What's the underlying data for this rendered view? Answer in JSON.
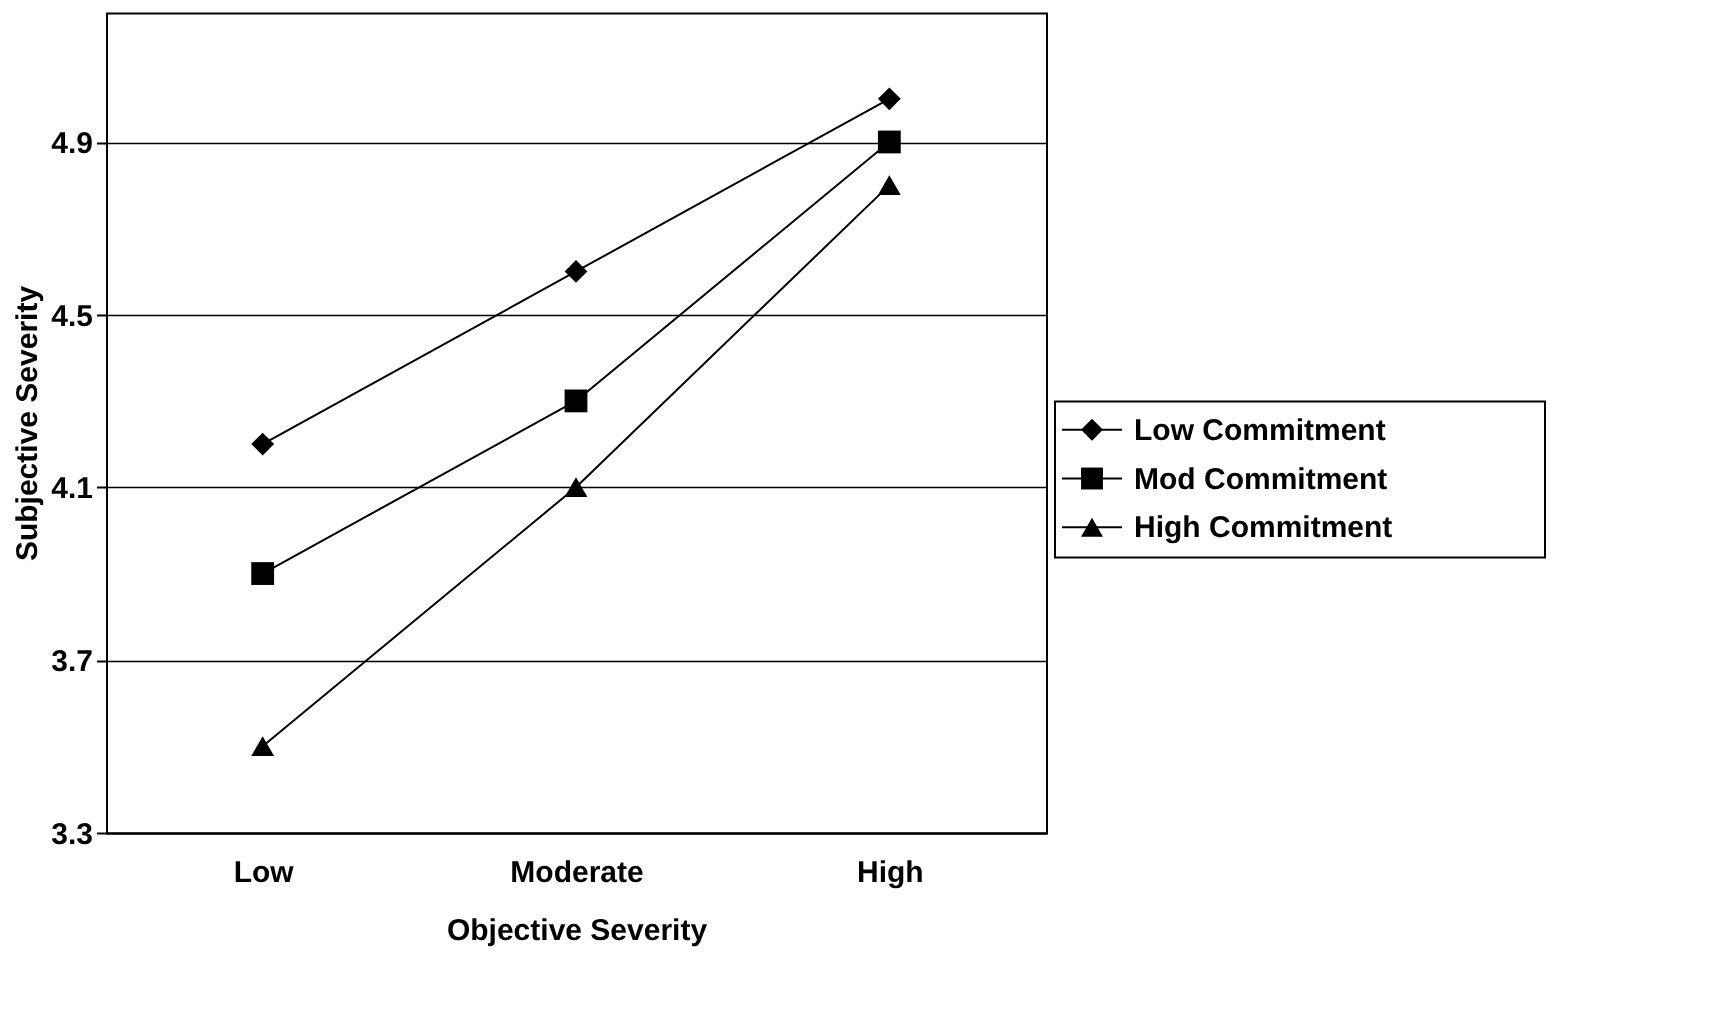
{
  "chart_data": {
    "type": "line",
    "xlabel": "Objective Severity",
    "ylabel": "Subjective Severity",
    "categories": [
      "Low",
      "Moderate",
      "High"
    ],
    "series": [
      {
        "name": "Low Commitment",
        "color": "#000000",
        "marker": "diamond",
        "values": [
          4.2,
          4.6,
          5.0
        ]
      },
      {
        "name": "Mod Commitment",
        "color": "#000000",
        "marker": "square",
        "values": [
          3.9,
          4.3,
          4.9
        ]
      },
      {
        "name": "High Commitment",
        "color": "#000000",
        "marker": "triangle",
        "values": [
          3.5,
          4.1,
          4.8
        ]
      }
    ],
    "ylim": [
      3.3,
      5.2
    ],
    "yticks": [
      3.3,
      3.7,
      4.1,
      4.5,
      4.9
    ],
    "grid": "y",
    "legend": "right",
    "line_style": "solid"
  }
}
